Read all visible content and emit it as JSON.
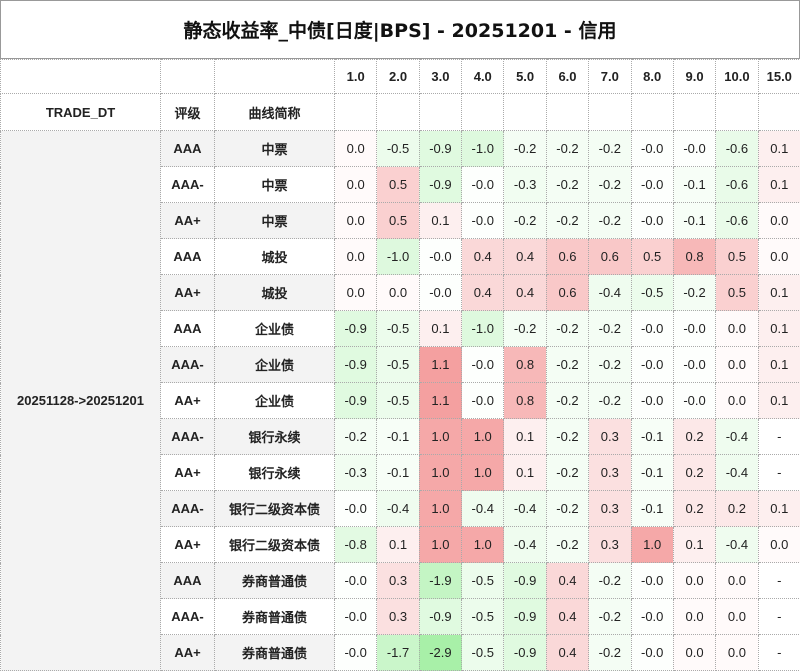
{
  "title": "静态收益率_中债[日度|BPS] - 20251201 - 信用",
  "headers": {
    "trade_dt": "TRADE_DT",
    "rating": "评级",
    "curve": "曲线简称"
  },
  "tenors": [
    "1.0",
    "2.0",
    "3.0",
    "4.0",
    "5.0",
    "6.0",
    "7.0",
    "8.0",
    "9.0",
    "10.0",
    "15.0"
  ],
  "trade_dt": "20251128->20251201",
  "colors": {
    "positive": "#f4a0a0",
    "negative": "#a8f0a8",
    "border": "#aaaaaa",
    "label_bg": "#f3f3f3"
  },
  "rows": [
    {
      "rating": "AAA",
      "curve": "中票",
      "values": [
        "0.0",
        "-0.5",
        "-0.9",
        "-1.0",
        "-0.2",
        "-0.2",
        "-0.2",
        "-0.0",
        "-0.0",
        "-0.6",
        "0.1"
      ]
    },
    {
      "rating": "AAA-",
      "curve": "中票",
      "values": [
        "0.0",
        "0.5",
        "-0.9",
        "-0.0",
        "-0.3",
        "-0.2",
        "-0.2",
        "-0.0",
        "-0.1",
        "-0.6",
        "0.1"
      ]
    },
    {
      "rating": "AA+",
      "curve": "中票",
      "values": [
        "0.0",
        "0.5",
        "0.1",
        "-0.0",
        "-0.2",
        "-0.2",
        "-0.2",
        "-0.0",
        "-0.1",
        "-0.6",
        "0.0"
      ]
    },
    {
      "rating": "AAA",
      "curve": "城投",
      "values": [
        "0.0",
        "-1.0",
        "-0.0",
        "0.4",
        "0.4",
        "0.6",
        "0.6",
        "0.5",
        "0.8",
        "0.5",
        "0.0"
      ]
    },
    {
      "rating": "AA+",
      "curve": "城投",
      "values": [
        "0.0",
        "0.0",
        "-0.0",
        "0.4",
        "0.4",
        "0.6",
        "-0.4",
        "-0.5",
        "-0.2",
        "0.5",
        "0.1"
      ]
    },
    {
      "rating": "AAA",
      "curve": "企业债",
      "values": [
        "-0.9",
        "-0.5",
        "0.1",
        "-1.0",
        "-0.2",
        "-0.2",
        "-0.2",
        "-0.0",
        "-0.0",
        "0.0",
        "0.1"
      ]
    },
    {
      "rating": "AAA-",
      "curve": "企业债",
      "values": [
        "-0.9",
        "-0.5",
        "1.1",
        "-0.0",
        "0.8",
        "-0.2",
        "-0.2",
        "-0.0",
        "-0.0",
        "0.0",
        "0.1"
      ]
    },
    {
      "rating": "AA+",
      "curve": "企业债",
      "values": [
        "-0.9",
        "-0.5",
        "1.1",
        "-0.0",
        "0.8",
        "-0.2",
        "-0.2",
        "-0.0",
        "-0.0",
        "0.0",
        "0.1"
      ]
    },
    {
      "rating": "AAA-",
      "curve": "银行永续",
      "values": [
        "-0.2",
        "-0.1",
        "1.0",
        "1.0",
        "0.1",
        "-0.2",
        "0.3",
        "-0.1",
        "0.2",
        "-0.4",
        "-"
      ]
    },
    {
      "rating": "AA+",
      "curve": "银行永续",
      "values": [
        "-0.3",
        "-0.1",
        "1.0",
        "1.0",
        "0.1",
        "-0.2",
        "0.3",
        "-0.1",
        "0.2",
        "-0.4",
        "-"
      ]
    },
    {
      "rating": "AAA-",
      "curve": "银行二级资本债",
      "values": [
        "-0.0",
        "-0.4",
        "1.0",
        "-0.4",
        "-0.4",
        "-0.2",
        "0.3",
        "-0.1",
        "0.2",
        "0.2",
        "0.1"
      ]
    },
    {
      "rating": "AA+",
      "curve": "银行二级资本债",
      "values": [
        "-0.8",
        "0.1",
        "1.0",
        "1.0",
        "-0.4",
        "-0.2",
        "0.3",
        "1.0",
        "0.1",
        "-0.4",
        "0.0"
      ]
    },
    {
      "rating": "AAA",
      "curve": "券商普通债",
      "values": [
        "-0.0",
        "0.3",
        "-1.9",
        "-0.5",
        "-0.9",
        "0.4",
        "-0.2",
        "-0.0",
        "0.0",
        "0.0",
        "-"
      ]
    },
    {
      "rating": "AAA-",
      "curve": "券商普通债",
      "values": [
        "-0.0",
        "0.3",
        "-0.9",
        "-0.5",
        "-0.9",
        "0.4",
        "-0.2",
        "-0.0",
        "0.0",
        "0.0",
        "-"
      ]
    },
    {
      "rating": "AA+",
      "curve": "券商普通债",
      "values": [
        "-0.0",
        "-1.7",
        "-2.9",
        "-0.5",
        "-0.9",
        "0.4",
        "-0.2",
        "-0.0",
        "0.0",
        "0.0",
        "-"
      ]
    }
  ]
}
